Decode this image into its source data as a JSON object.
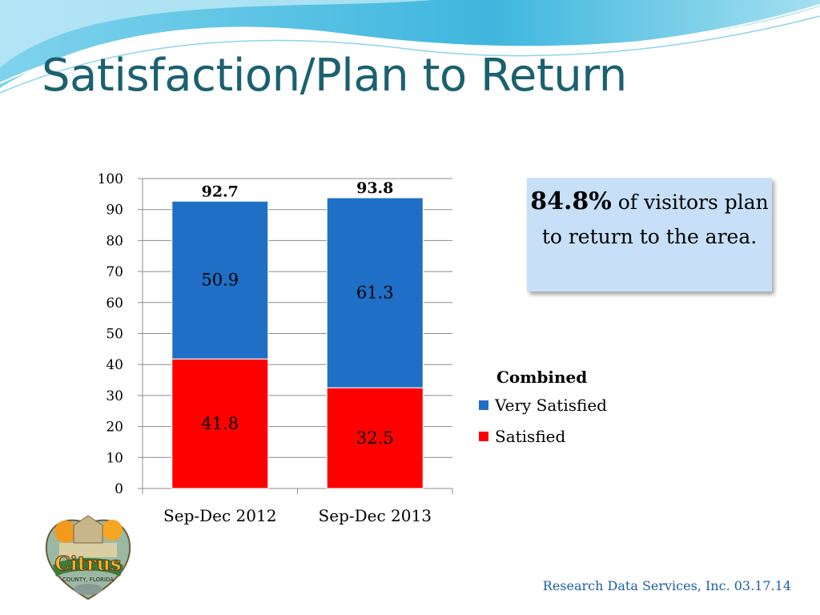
{
  "slide": {
    "title": "Satisfaction/Plan to Return",
    "footer": "Research Data Services, Inc.  03.17.14"
  },
  "callout": {
    "highlight": "84.8%",
    "text": "of visitors plan to return to the area."
  },
  "legend": {
    "title": "Combined",
    "items": [
      {
        "label": "Very Satisfied",
        "color": "#1f6fc6"
      },
      {
        "label": "Satisfied",
        "color": "#ff0000"
      }
    ]
  },
  "logo": {
    "text": "Citrus",
    "subtext": "COUNTY, FLORIDA"
  },
  "chart_data": {
    "type": "bar",
    "stacked": true,
    "categories": [
      "Sep-Dec 2012",
      "Sep-Dec 2013"
    ],
    "series": [
      {
        "name": "Satisfied",
        "values": [
          41.8,
          32.5
        ],
        "color": "#ff0000",
        "labels": [
          "41.8",
          "32.5"
        ]
      },
      {
        "name": "Very Satisfied",
        "values": [
          50.9,
          61.3
        ],
        "color": "#1f6fc6",
        "labels": [
          "50.9",
          "61.3"
        ]
      }
    ],
    "totals": [
      "92.7",
      "93.8"
    ],
    "ylim": [
      0,
      100
    ],
    "yticks": [
      0,
      10,
      20,
      30,
      40,
      50,
      60,
      70,
      80,
      90,
      100
    ],
    "grid": true,
    "legend_position": "right"
  }
}
